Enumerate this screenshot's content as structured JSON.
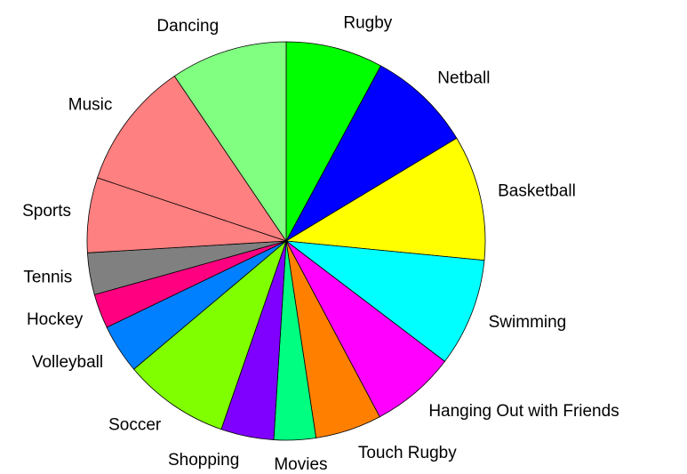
{
  "chart_data": {
    "type": "pie",
    "categories": [
      "Rugby",
      "Netball",
      "Basketball",
      "Swimming",
      "Hanging Out with Friends",
      "Touch Rugby",
      "Movies",
      "Shopping",
      "Soccer",
      "Volleyball",
      "Hockey",
      "Tennis",
      "Sports",
      "Music",
      "Dancing"
    ],
    "values": [
      7.9,
      8.5,
      10.2,
      8.8,
      6.9,
      5.4,
      3.4,
      4.3,
      8.6,
      4.0,
      2.8,
      3.4,
      6.1,
      10.4,
      9.5
    ],
    "colors": [
      "#00ff00",
      "#0000ff",
      "#ffff00",
      "#00ffff",
      "#ff00ff",
      "#ff8000",
      "#00ff80",
      "#8000ff",
      "#80ff00",
      "#0080ff",
      "#ff0080",
      "#808080",
      "#ff8080",
      "#ff8080",
      "#80ff80"
    ]
  }
}
